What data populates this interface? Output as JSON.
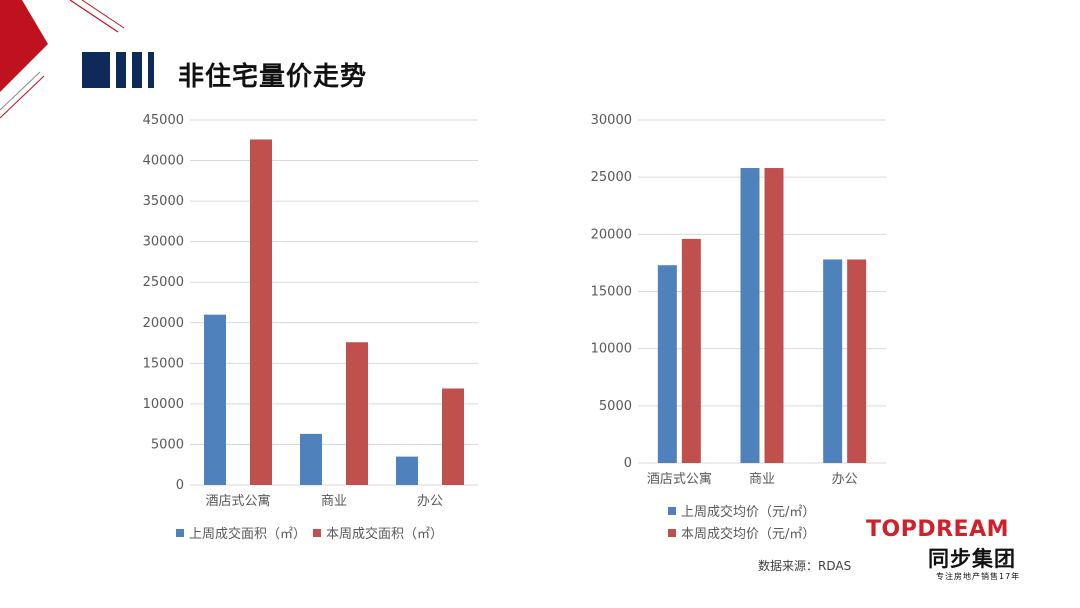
{
  "title": "非住宅量价走势",
  "source_note": "数据来源：RDAS",
  "logo": {
    "english": "TOPDREAM",
    "chinese": "同步集团",
    "tagline": "专注房地产销售17年"
  },
  "colors": {
    "series_prev": "#4f81bd",
    "series_curr": "#c0504d",
    "title_bars": "#0d2a5a",
    "accent_red": "#c0121e",
    "gridline": "#d9d9d9"
  },
  "chart_data": [
    {
      "type": "bar",
      "categories": [
        "酒店式公寓",
        "商业",
        "办公"
      ],
      "series": [
        {
          "name": "上周成交面积（㎡）",
          "values": [
            21000,
            6300,
            3500
          ]
        },
        {
          "name": "本周成交面积（㎡）",
          "values": [
            42600,
            17600,
            11900
          ]
        }
      ],
      "yticks": [
        0,
        5000,
        10000,
        15000,
        20000,
        25000,
        30000,
        35000,
        40000,
        45000
      ],
      "ylim": [
        0,
        45000
      ],
      "grid": true,
      "legend_position": "bottom"
    },
    {
      "type": "bar",
      "categories": [
        "酒店式公寓",
        "商业",
        "办公"
      ],
      "series": [
        {
          "name": "上周成交均价（元/㎡）",
          "values": [
            17300,
            25800,
            17800
          ]
        },
        {
          "name": "本周成交均价（元/㎡）",
          "values": [
            19600,
            25800,
            17800
          ]
        }
      ],
      "yticks": [
        0,
        5000,
        10000,
        15000,
        20000,
        25000,
        30000
      ],
      "ylim": [
        0,
        30000
      ],
      "grid": true,
      "legend_position": "bottom"
    }
  ]
}
